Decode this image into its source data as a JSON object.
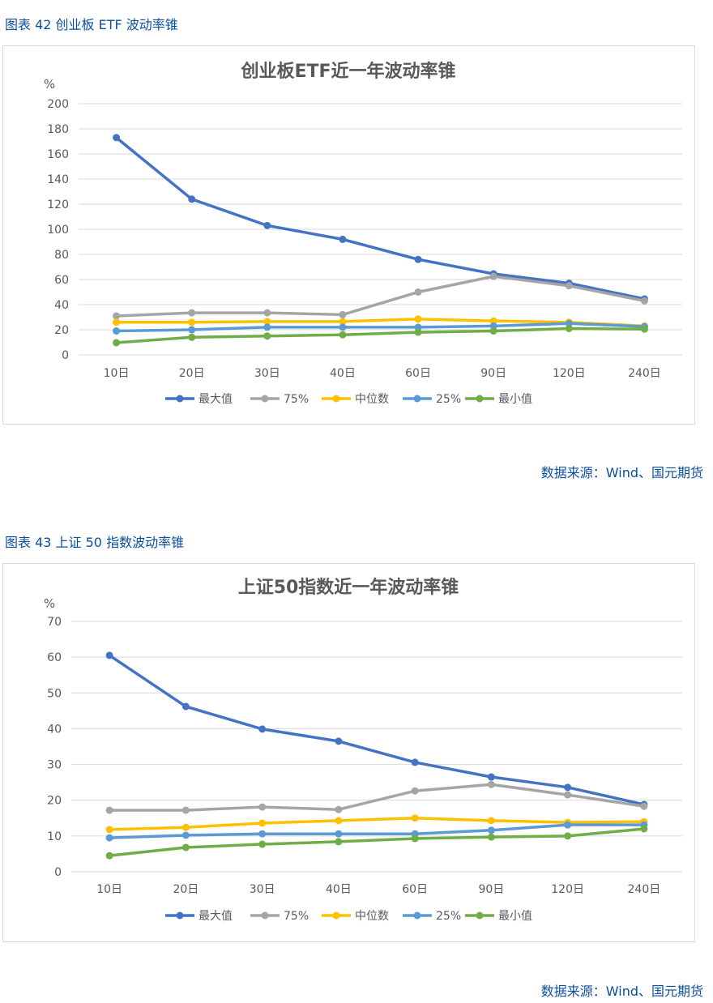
{
  "figures": [
    {
      "caption": "图表 42  创业板 ETF 波动率锥",
      "source": "数据来源：Wind、国元期货"
    },
    {
      "caption": "图表 43  上证 50 指数波动率锥",
      "source": "数据来源：Wind、国元期货"
    }
  ],
  "chart_data": [
    {
      "type": "line",
      "title": "创业板ETF近一年波动率锥",
      "ylabel": "%",
      "ylim": [
        0,
        200
      ],
      "yticks": [
        0,
        20,
        40,
        60,
        80,
        100,
        120,
        140,
        160,
        180,
        200
      ],
      "grid": true,
      "legend": "bottom",
      "categories": [
        "10日",
        "20日",
        "30日",
        "40日",
        "60日",
        "90日",
        "120日",
        "240日"
      ],
      "series": [
        {
          "name": "最大值",
          "color": "#4472c4",
          "values": [
            173,
            124,
            103,
            92,
            76,
            64.5,
            57,
            44.5
          ]
        },
        {
          "name": "75%",
          "color": "#a5a5a5",
          "values": [
            31,
            33.5,
            33.5,
            32,
            50,
            62.5,
            55,
            43
          ]
        },
        {
          "name": "中位数",
          "color": "#ffc000",
          "values": [
            26,
            26,
            26.5,
            26.5,
            28.5,
            27,
            26,
            23
          ]
        },
        {
          "name": "25%",
          "color": "#5b9bd5",
          "values": [
            19,
            20,
            22,
            22,
            22,
            23,
            25,
            22.5
          ]
        },
        {
          "name": "最小值",
          "color": "#70ad47",
          "values": [
            9.7,
            14,
            15,
            16,
            18,
            19,
            21,
            20.5
          ]
        }
      ]
    },
    {
      "type": "line",
      "title": "上证50指数近一年波动率锥",
      "ylabel": "%",
      "ylim": [
        0,
        70
      ],
      "yticks": [
        0,
        10,
        20,
        30,
        40,
        50,
        60,
        70
      ],
      "grid": true,
      "legend": "bottom",
      "categories": [
        "10日",
        "20日",
        "30日",
        "40日",
        "60日",
        "90日",
        "120日",
        "240日"
      ],
      "series": [
        {
          "name": "最大值",
          "color": "#4472c4",
          "values": [
            60.5,
            46.2,
            39.9,
            36.5,
            30.6,
            26.5,
            23.6,
            18.8
          ]
        },
        {
          "name": "75%",
          "color": "#a5a5a5",
          "values": [
            17.2,
            17.2,
            18.1,
            17.4,
            22.6,
            24.4,
            21.5,
            18.3
          ]
        },
        {
          "name": "中位数",
          "color": "#ffc000",
          "values": [
            11.8,
            12.4,
            13.6,
            14.3,
            15,
            14.3,
            13.8,
            14
          ]
        },
        {
          "name": "25%",
          "color": "#5b9bd5",
          "values": [
            9.5,
            10.2,
            10.6,
            10.6,
            10.6,
            11.6,
            13.1,
            13.1
          ]
        },
        {
          "name": "最小值",
          "color": "#70ad47",
          "values": [
            4.5,
            6.8,
            7.7,
            8.4,
            9.3,
            9.7,
            10,
            12
          ]
        }
      ]
    }
  ]
}
